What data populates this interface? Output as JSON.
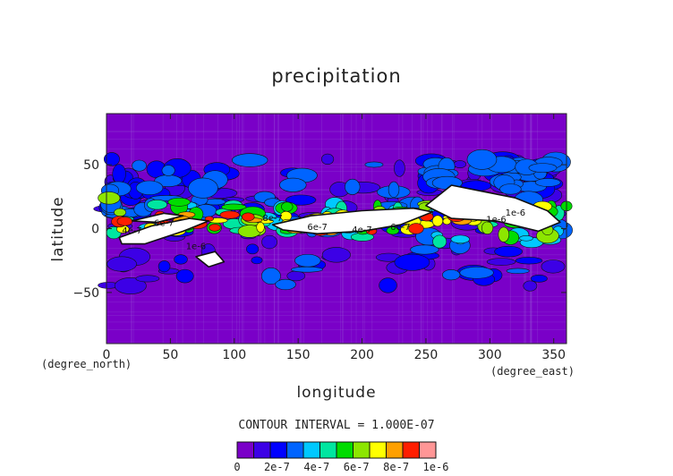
{
  "chart_data": {
    "type": "heatmap",
    "title": "precipitation",
    "xlabel": "longitude",
    "ylabel": "latitude",
    "x_units": "(degree_east)",
    "y_units": "(degree_north)",
    "xlim": [
      0,
      360
    ],
    "ylim": [
      -90,
      90
    ],
    "x_ticks": [
      0,
      50,
      100,
      150,
      200,
      250,
      300,
      350
    ],
    "y_ticks": [
      -50,
      0,
      50
    ],
    "contour_interval_text": "CONTOUR INTERVAL = 1.000E-07",
    "colorbar": {
      "min": 0,
      "max": 1e-06,
      "tick_labels": [
        "0",
        "2e-7",
        "4e-7",
        "6e-7",
        "8e-7",
        "1e-6"
      ],
      "colors": [
        "#7a00c8",
        "#3c00e6",
        "#0000ff",
        "#0064ff",
        "#00c8ff",
        "#00e6a0",
        "#00dc00",
        "#8ce600",
        "#ffff00",
        "#ffa000",
        "#ff1e00",
        "#ff9696"
      ]
    },
    "contour_labels": [
      "4e-7",
      "6e-7",
      "1e-6",
      "8e-7",
      "6e-7",
      "4e-7",
      "6e-7",
      "1e-6",
      "1e-6"
    ],
    "grid": false,
    "legend": "colorbar bottom-center"
  }
}
